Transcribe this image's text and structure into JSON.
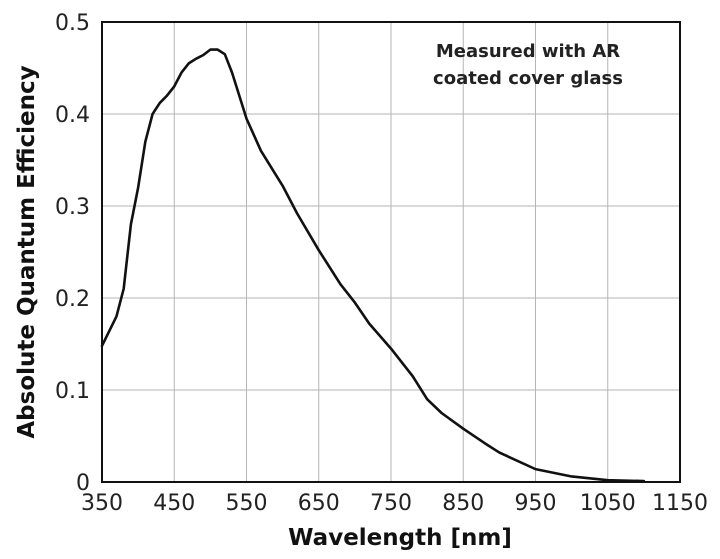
{
  "chart_data": {
    "type": "line",
    "title": "",
    "xlabel": "Wavelength [nm]",
    "ylabel": "Absolute Quantum Efficiency",
    "xlim": [
      350,
      1150
    ],
    "ylim": [
      0,
      0.5
    ],
    "x_ticks": [
      350,
      450,
      550,
      650,
      750,
      850,
      950,
      1050,
      1150
    ],
    "y_ticks": [
      0,
      0.1,
      0.2,
      0.3,
      0.4,
      0.5
    ],
    "x_tick_labels": [
      "350",
      "450",
      "550",
      "650",
      "750",
      "850",
      "950",
      "1050",
      "1150"
    ],
    "y_tick_labels": [
      "0",
      "0.1",
      "0.2",
      "0.3",
      "0.4",
      "0.5"
    ],
    "grid": true,
    "legend": "none",
    "annotation_lines": [
      "Measured with AR",
      "coated cover glass"
    ],
    "line_color": "#111111",
    "grid_color": "#b5b5b5",
    "series": [
      {
        "values": [
          [
            350,
            0.148
          ],
          [
            370,
            0.18
          ],
          [
            380,
            0.21
          ],
          [
            390,
            0.28
          ],
          [
            400,
            0.32
          ],
          [
            410,
            0.37
          ],
          [
            420,
            0.4
          ],
          [
            430,
            0.412
          ],
          [
            440,
            0.42
          ],
          [
            450,
            0.43
          ],
          [
            460,
            0.445
          ],
          [
            470,
            0.455
          ],
          [
            480,
            0.46
          ],
          [
            490,
            0.464
          ],
          [
            500,
            0.47
          ],
          [
            510,
            0.47
          ],
          [
            520,
            0.465
          ],
          [
            530,
            0.445
          ],
          [
            540,
            0.42
          ],
          [
            550,
            0.395
          ],
          [
            570,
            0.36
          ],
          [
            600,
            0.322
          ],
          [
            620,
            0.292
          ],
          [
            650,
            0.252
          ],
          [
            680,
            0.215
          ],
          [
            700,
            0.195
          ],
          [
            720,
            0.172
          ],
          [
            750,
            0.145
          ],
          [
            780,
            0.115
          ],
          [
            800,
            0.09
          ],
          [
            820,
            0.075
          ],
          [
            850,
            0.058
          ],
          [
            880,
            0.042
          ],
          [
            900,
            0.032
          ],
          [
            950,
            0.014
          ],
          [
            1000,
            0.006
          ],
          [
            1050,
            0.002
          ],
          [
            1100,
            0.001
          ]
        ]
      }
    ]
  }
}
